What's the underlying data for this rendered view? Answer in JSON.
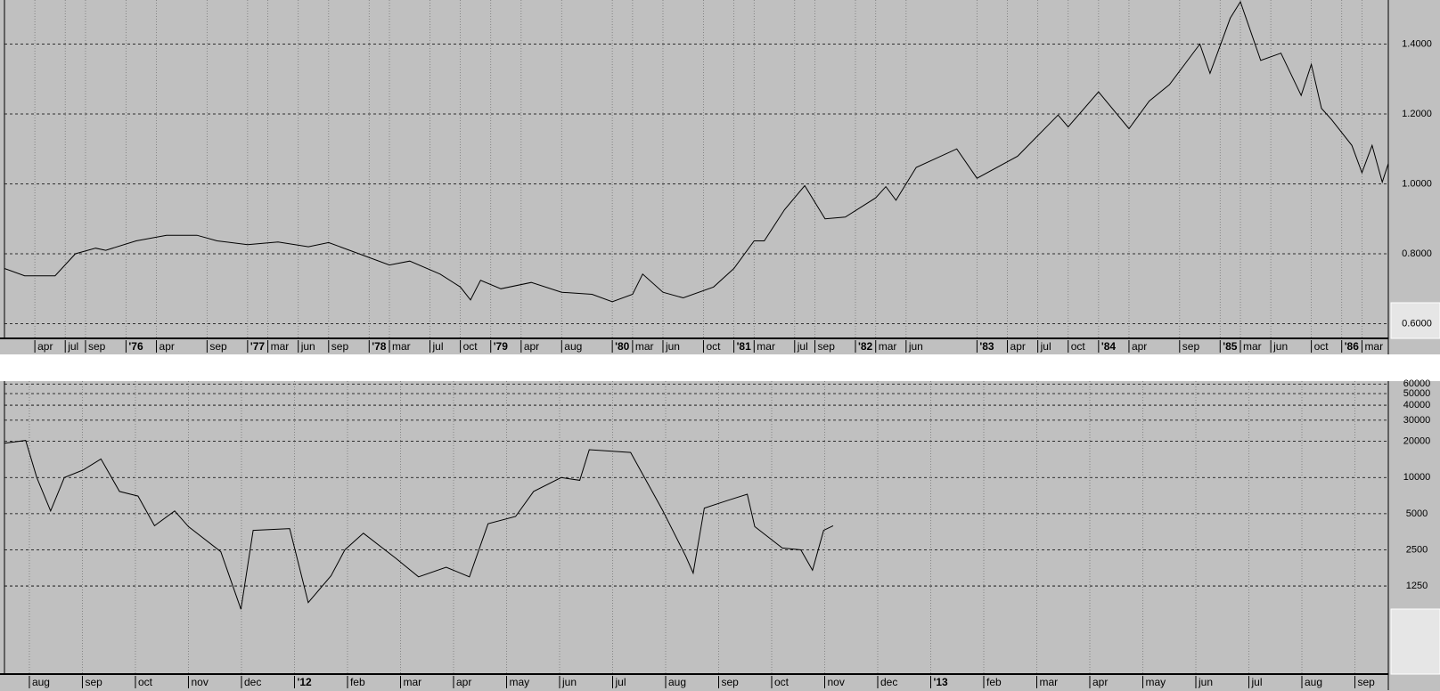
{
  "chart_data": [
    {
      "type": "line",
      "color": "#000000",
      "grid": true,
      "xgrid": true,
      "log_scale": false,
      "xlim": [
        0,
        136.6
      ],
      "ylim": [
        0.558,
        1.526
      ],
      "xticks": [
        {
          "value": 3,
          "label": "apr"
        },
        {
          "value": 6,
          "label": "jul"
        },
        {
          "value": 8,
          "label": "sep"
        },
        {
          "value": 12,
          "label": "'76"
        },
        {
          "value": 15,
          "label": "apr"
        },
        {
          "value": 20,
          "label": "sep"
        },
        {
          "value": 24,
          "label": "'77"
        },
        {
          "value": 26,
          "label": "mar"
        },
        {
          "value": 29,
          "label": "jun"
        },
        {
          "value": 32,
          "label": "sep"
        },
        {
          "value": 36,
          "label": "'78"
        },
        {
          "value": 38,
          "label": "mar"
        },
        {
          "value": 42,
          "label": "jul"
        },
        {
          "value": 45,
          "label": "oct"
        },
        {
          "value": 48,
          "label": "'79"
        },
        {
          "value": 51,
          "label": "apr"
        },
        {
          "value": 55,
          "label": "aug"
        },
        {
          "value": 60,
          "label": "'80"
        },
        {
          "value": 62,
          "label": "mar"
        },
        {
          "value": 65,
          "label": "jun"
        },
        {
          "value": 69,
          "label": "oct"
        },
        {
          "value": 72,
          "label": "'81"
        },
        {
          "value": 74,
          "label": "mar"
        },
        {
          "value": 78,
          "label": "jul"
        },
        {
          "value": 80,
          "label": "sep"
        },
        {
          "value": 84,
          "label": "'82"
        },
        {
          "value": 86,
          "label": "mar"
        },
        {
          "value": 89,
          "label": "jun"
        },
        {
          "value": 96,
          "label": "'83"
        },
        {
          "value": 99,
          "label": "apr"
        },
        {
          "value": 102,
          "label": "jul"
        },
        {
          "value": 105,
          "label": "oct"
        },
        {
          "value": 108,
          "label": "'84"
        },
        {
          "value": 111,
          "label": "apr"
        },
        {
          "value": 116,
          "label": "sep"
        },
        {
          "value": 120,
          "label": "'85"
        },
        {
          "value": 122,
          "label": "mar"
        },
        {
          "value": 125,
          "label": "jun"
        },
        {
          "value": 129,
          "label": "oct"
        },
        {
          "value": 132,
          "label": "'86"
        },
        {
          "value": 134,
          "label": "mar"
        }
      ],
      "yticks": [
        {
          "value": 1.4,
          "label": "1.4000"
        },
        {
          "value": 1.2,
          "label": "1.2000"
        },
        {
          "value": 1.0,
          "label": "1.0000"
        },
        {
          "value": 0.8,
          "label": "0.8000"
        },
        {
          "value": 0.6,
          "label": "0.6000"
        }
      ],
      "x": [
        0,
        2,
        5,
        7,
        9,
        10,
        13,
        16,
        19,
        21,
        24,
        27,
        30,
        32,
        35,
        38,
        40,
        43,
        45,
        46,
        47,
        49,
        52,
        55,
        58,
        60,
        62,
        63,
        65,
        67,
        70,
        72,
        74,
        75,
        77,
        79,
        81,
        83,
        86,
        87,
        88,
        90,
        94,
        96,
        100,
        104,
        105,
        108,
        111,
        113,
        115,
        118,
        119,
        121,
        122,
        124,
        126,
        128,
        129,
        130,
        131,
        133,
        134,
        135,
        136,
        136.6
      ],
      "values": [
        0.758,
        0.737,
        0.737,
        0.8,
        0.816,
        0.81,
        0.837,
        0.853,
        0.853,
        0.837,
        0.826,
        0.834,
        0.82,
        0.832,
        0.8,
        0.768,
        0.779,
        0.742,
        0.705,
        0.668,
        0.724,
        0.7,
        0.718,
        0.69,
        0.684,
        0.663,
        0.684,
        0.742,
        0.69,
        0.674,
        0.705,
        0.758,
        0.837,
        0.837,
        0.926,
        0.995,
        0.9,
        0.905,
        0.96,
        0.992,
        0.953,
        1.047,
        1.1,
        1.016,
        1.079,
        1.197,
        1.163,
        1.263,
        1.158,
        1.237,
        1.284,
        1.4,
        1.316,
        1.474,
        1.521,
        1.353,
        1.374,
        1.253,
        1.342,
        1.216,
        1.184,
        1.11,
        1.032,
        1.11,
        1.005,
        1.058
      ]
    },
    {
      "type": "line",
      "color": "#000000",
      "grid": true,
      "xgrid": true,
      "log_scale": true,
      "xlim": [
        0.53,
        26.63
      ],
      "ylim": [
        231,
        63460
      ],
      "xticks": [
        {
          "value": 1,
          "label": "aug"
        },
        {
          "value": 2,
          "label": "sep"
        },
        {
          "value": 3,
          "label": "oct"
        },
        {
          "value": 4,
          "label": "nov"
        },
        {
          "value": 5,
          "label": "dec"
        },
        {
          "value": 6,
          "label": "'12"
        },
        {
          "value": 7,
          "label": "feb"
        },
        {
          "value": 8,
          "label": "mar"
        },
        {
          "value": 9,
          "label": "apr"
        },
        {
          "value": 10,
          "label": "may"
        },
        {
          "value": 11,
          "label": "jun"
        },
        {
          "value": 12,
          "label": "jul"
        },
        {
          "value": 13,
          "label": "aug"
        },
        {
          "value": 14,
          "label": "sep"
        },
        {
          "value": 15,
          "label": "oct"
        },
        {
          "value": 16,
          "label": "nov"
        },
        {
          "value": 17,
          "label": "dec"
        },
        {
          "value": 18,
          "label": "'13"
        },
        {
          "value": 19,
          "label": "feb"
        },
        {
          "value": 20,
          "label": "mar"
        },
        {
          "value": 21,
          "label": "apr"
        },
        {
          "value": 22,
          "label": "may"
        },
        {
          "value": 23,
          "label": "jun"
        },
        {
          "value": 24,
          "label": "jul"
        },
        {
          "value": 25,
          "label": "aug"
        },
        {
          "value": 26,
          "label": "sep"
        }
      ],
      "yticks": [
        60000,
        50000,
        40000,
        30000,
        20000,
        10000,
        5000,
        2500,
        1250
      ],
      "x": [
        0.53,
        0.93,
        1.14,
        1.4,
        1.66,
        2.01,
        2.35,
        2.7,
        3.05,
        3.36,
        3.74,
        4.0,
        4.61,
        4.99,
        5.22,
        5.91,
        6.26,
        6.69,
        6.95,
        7.3,
        7.91,
        8.34,
        8.86,
        9.3,
        9.65,
        10.17,
        10.51,
        11.03,
        11.38,
        11.56,
        12.34,
        12.94,
        13.38,
        13.52,
        13.73,
        14.16,
        14.54,
        14.68,
        15.2,
        15.55,
        15.77,
        15.98,
        16.16
      ],
      "values": [
        19300,
        20360,
        10000,
        5270,
        10000,
        11530,
        14270,
        7660,
        7010,
        3970,
        5270,
        3900,
        2410,
        800,
        3630,
        3760,
        910,
        1520,
        2500,
        3440,
        2130,
        1490,
        1790,
        1490,
        4120,
        4740,
        7660,
        10000,
        9480,
        17040,
        16160,
        5370,
        2210,
        1600,
        5560,
        6420,
        7260,
        3900,
        2590,
        2500,
        1690,
        3630,
        3970
      ]
    }
  ]
}
